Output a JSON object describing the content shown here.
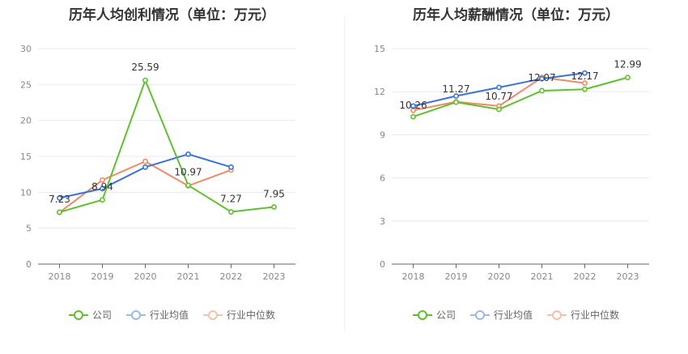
{
  "colors": {
    "company": "#5ec12b",
    "industry_avg": "#3b73d9",
    "industry_median": "#f08a67",
    "grid": "#e6ebf3",
    "axis": "#666666"
  },
  "legend": {
    "company": "公司",
    "industry_avg": "行业均值",
    "industry_median": "行业中位数"
  },
  "chart_data": [
    {
      "type": "line",
      "title": "历年人均创利情况（单位：万元）",
      "categories": [
        "2018",
        "2019",
        "2020",
        "2021",
        "2022",
        "2023"
      ],
      "ylim": [
        0,
        30
      ],
      "yticks": [
        0,
        5,
        10,
        15,
        20,
        25,
        30
      ],
      "grid": true,
      "legend_position": "bottom",
      "series": [
        {
          "name": "公司",
          "color": "#5ec12b",
          "values": [
            7.23,
            8.94,
            25.59,
            10.97,
            7.27,
            7.95
          ],
          "labels": [
            "7.23",
            "8.94",
            "25.59",
            "10.97",
            "7.27",
            "7.95"
          ]
        },
        {
          "name": "行业均值",
          "color": "#3b73d9",
          "values": [
            9.2,
            10.5,
            13.5,
            15.3,
            13.5,
            null
          ]
        },
        {
          "name": "行业中位数",
          "color": "#f08a67",
          "values": [
            7.2,
            11.7,
            14.3,
            10.9,
            13.1,
            null
          ]
        }
      ]
    },
    {
      "type": "line",
      "title": "历年人均薪酬情况（单位：万元）",
      "categories": [
        "2018",
        "2019",
        "2020",
        "2021",
        "2022",
        "2023"
      ],
      "ylim": [
        0,
        15
      ],
      "yticks": [
        0,
        3,
        6,
        9,
        12,
        15
      ],
      "grid": true,
      "legend_position": "bottom",
      "series": [
        {
          "name": "公司",
          "color": "#5ec12b",
          "values": [
            10.26,
            11.27,
            10.77,
            12.07,
            12.17,
            12.99
          ],
          "labels": [
            "10.26",
            "11.27",
            "10.77",
            "12.07",
            "12.17",
            "12.99"
          ]
        },
        {
          "name": "行业均值",
          "color": "#3b73d9",
          "values": [
            11.0,
            11.7,
            12.3,
            12.9,
            13.3,
            null
          ]
        },
        {
          "name": "行业中位数",
          "color": "#f08a67",
          "values": [
            10.7,
            11.3,
            11.0,
            13.0,
            12.6,
            null
          ]
        }
      ]
    }
  ]
}
